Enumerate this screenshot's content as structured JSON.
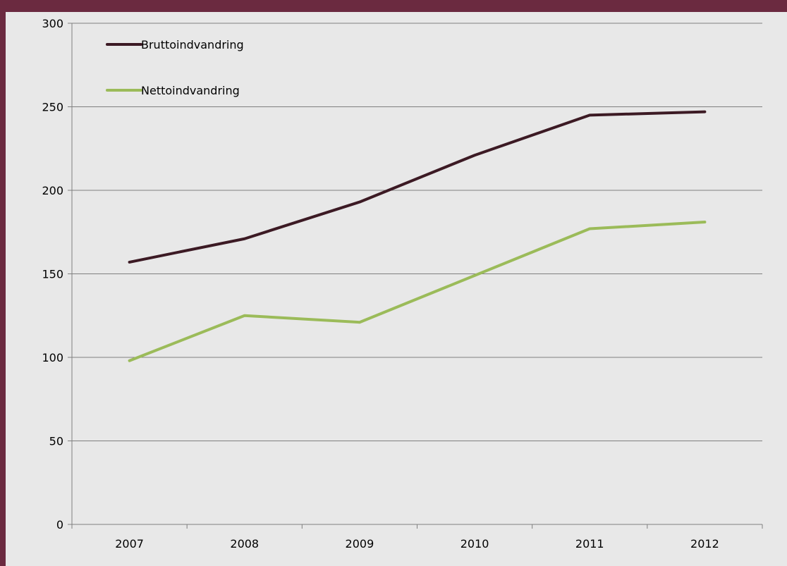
{
  "chart_data": {
    "type": "line",
    "categories": [
      "2007",
      "2008",
      "2009",
      "2010",
      "2011",
      "2012"
    ],
    "series": [
      {
        "name": "Bruttoindvandring",
        "values": [
          157,
          171,
          193,
          221,
          245,
          247
        ],
        "color": "#3c1a24"
      },
      {
        "name": "Nettoindvandring",
        "values": [
          98,
          125,
          121,
          149,
          177,
          181
        ],
        "color": "#9bbb59"
      }
    ],
    "ylim": [
      0,
      300
    ],
    "yticks": [
      0,
      50,
      100,
      150,
      200,
      250,
      300
    ],
    "grid": true,
    "legend_position": "top-left",
    "title": "",
    "xlabel": "",
    "ylabel": ""
  },
  "colors": {
    "frame": "#6b2a40",
    "background": "#e8e8e8",
    "gridline": "#7f7f7f"
  }
}
